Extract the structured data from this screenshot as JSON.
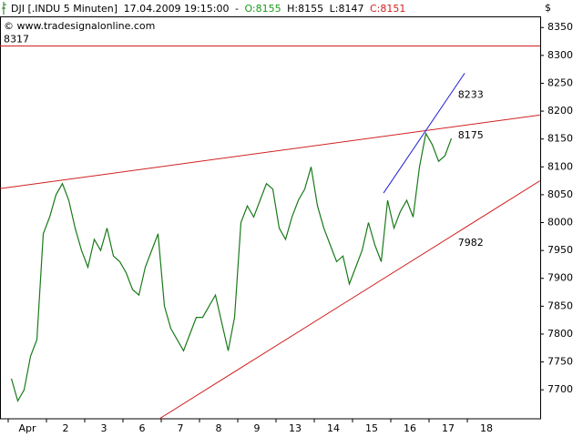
{
  "chart_data": {
    "type": "line",
    "header": {
      "symbol": "DJI [.INDU  5 Minuten]",
      "time": "17.04.2009 19:15:00",
      "dash": "-",
      "open": "O:8155",
      "high": "H:8155",
      "low": "L:8147",
      "close": "C:8151"
    },
    "source": "© www.tradesignalonline.com",
    "currency": "$",
    "categories": [
      "Apr",
      "2",
      "3",
      "6",
      "7",
      "8",
      "9",
      "13",
      "14",
      "15",
      "16",
      "17",
      "18"
    ],
    "values": [
      [
        7720,
        7680,
        7700,
        7760,
        7790,
        7980
      ],
      [
        8010,
        8050,
        8070,
        8040,
        7990,
        7950
      ],
      [
        7920,
        7970,
        7950,
        7990,
        7940,
        7930
      ],
      [
        7910,
        7880,
        7870,
        7920,
        7950,
        7980
      ],
      [
        7850,
        7810,
        7790,
        7770,
        7800,
        7830
      ],
      [
        7830,
        7850,
        7870,
        7820,
        7770,
        7830
      ],
      [
        8000,
        8030,
        8010,
        8040,
        8070,
        8060
      ],
      [
        7990,
        7970,
        8010,
        8040,
        8060,
        8100
      ],
      [
        8030,
        7990,
        7960,
        7930,
        7940,
        7890
      ],
      [
        7920,
        7950,
        8000,
        7960,
        7930,
        8040
      ],
      [
        7990,
        8020,
        8040,
        8010,
        8100,
        8160
      ],
      [
        8140,
        8110,
        8120,
        8151
      ],
      []
    ],
    "color": "#1a7a1a",
    "ylim": [
      7648,
      8370
    ],
    "yticks": [
      7700,
      7750,
      7800,
      7850,
      7900,
      7950,
      8000,
      8050,
      8100,
      8150,
      8200,
      8250,
      8300,
      8350
    ],
    "hline": {
      "value": 8317,
      "color": "#d02020"
    },
    "lines": [
      {
        "from": [
          -0.21,
          8061
        ],
        "to": [
          13.9,
          8193
        ],
        "label": 8175,
        "color": "#d02020"
      },
      {
        "from": [
          3.95,
          7648
        ],
        "to": [
          13.9,
          8075
        ],
        "label": 7982,
        "color": "#d02020"
      },
      {
        "from": [
          9.81,
          8053
        ],
        "to": [
          11.93,
          8268
        ],
        "label": 8233,
        "color": "#2020d0"
      }
    ]
  }
}
